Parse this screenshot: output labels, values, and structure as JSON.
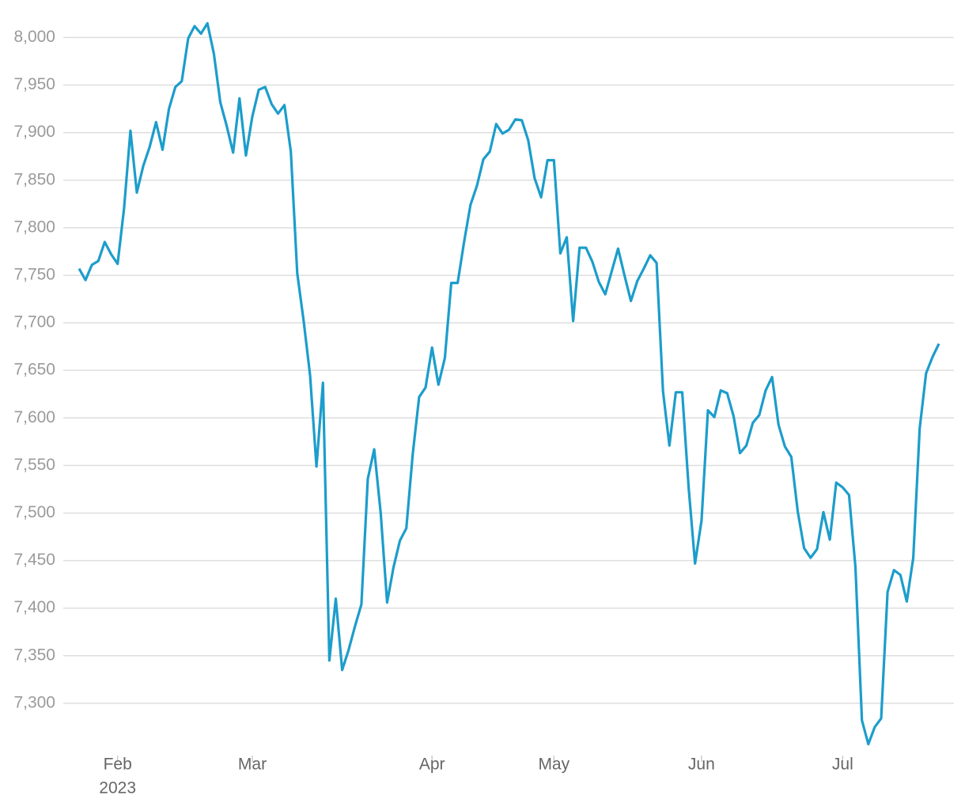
{
  "chart_data": {
    "type": "line",
    "categories": [
      null,
      null,
      null,
      null,
      null,
      null,
      "Feb",
      null,
      null,
      null,
      null,
      null,
      null,
      null,
      null,
      null,
      null,
      null,
      null,
      null,
      null,
      null,
      null,
      null,
      null,
      null,
      null,
      "Mar",
      null,
      null,
      null,
      null,
      null,
      null,
      null,
      null,
      null,
      null,
      null,
      null,
      null,
      null,
      null,
      null,
      null,
      null,
      null,
      null,
      null,
      null,
      null,
      null,
      null,
      null,
      null,
      "Apr",
      null,
      null,
      null,
      null,
      null,
      null,
      null,
      null,
      null,
      null,
      null,
      null,
      null,
      null,
      null,
      null,
      null,
      null,
      "May",
      null,
      null,
      null,
      null,
      null,
      null,
      null,
      null,
      null,
      null,
      null,
      null,
      null,
      null,
      null,
      null,
      null,
      null,
      null,
      null,
      null,
      null,
      "Jun",
      null,
      null,
      null,
      null,
      null,
      null,
      null,
      null,
      null,
      null,
      null,
      null,
      null,
      null,
      null,
      null,
      null,
      null,
      null,
      null,
      null,
      "Jul",
      null,
      null,
      null,
      null,
      null,
      null,
      null,
      null,
      null,
      null,
      null,
      null,
      null,
      null,
      null
    ],
    "x_year_label": "2023",
    "series": [
      {
        "color": "#1c9dcb",
        "values": [
          7757,
          7745,
          7761,
          7765,
          7785,
          7772,
          7762,
          7820,
          7902,
          7837,
          7865,
          7885,
          7911,
          7882,
          7925,
          7948,
          7954,
          7999,
          8012,
          8004,
          8015,
          7983,
          7932,
          7907,
          7879,
          7936,
          7876,
          7917,
          7945,
          7948,
          7930,
          7920,
          7929,
          7880,
          7752,
          7702,
          7645,
          7549,
          7637,
          7345,
          7410,
          7335,
          7356,
          7381,
          7404,
          7536,
          7567,
          7500,
          7406,
          7443,
          7471,
          7484,
          7562,
          7622,
          7632,
          7674,
          7635,
          7663,
          7742,
          7742,
          7785,
          7824,
          7844,
          7872,
          7880,
          7909,
          7899,
          7903,
          7914,
          7913,
          7892,
          7852,
          7832,
          7871,
          7871,
          7773,
          7790,
          7702,
          7779,
          7779,
          7764,
          7743,
          7730,
          7754,
          7778,
          7750,
          7723,
          7744,
          7757,
          7771,
          7763,
          7628,
          7571,
          7627,
          7627,
          7527,
          7447,
          7492,
          7608,
          7601,
          7629,
          7626,
          7602,
          7563,
          7571,
          7595,
          7603,
          7629,
          7643,
          7593,
          7570,
          7559,
          7502,
          7463,
          7453,
          7462,
          7501,
          7472,
          7532,
          7527,
          7519,
          7443,
          7282,
          7257,
          7275,
          7284,
          7417,
          7440,
          7435,
          7407,
          7453,
          7589,
          7647,
          7664,
          7678
        ]
      }
    ],
    "ylim": [
      7245,
      8017
    ],
    "yticks": [
      {
        "value": 7300,
        "label": "7,300"
      },
      {
        "value": 7350,
        "label": "7,350"
      },
      {
        "value": 7400,
        "label": "7,400"
      },
      {
        "value": 7450,
        "label": "7,450"
      },
      {
        "value": 7500,
        "label": "7,500"
      },
      {
        "value": 7550,
        "label": "7,550"
      },
      {
        "value": 7600,
        "label": "7,600"
      },
      {
        "value": 7650,
        "label": "7,650"
      },
      {
        "value": 7700,
        "label": "7,700"
      },
      {
        "value": 7750,
        "label": "7,750"
      },
      {
        "value": 7800,
        "label": "7,800"
      },
      {
        "value": 7850,
        "label": "7,850"
      },
      {
        "value": 7900,
        "label": "7,900"
      },
      {
        "value": 7950,
        "label": "7,950"
      },
      {
        "value": 8000,
        "label": "8,000"
      }
    ],
    "grid": true
  }
}
